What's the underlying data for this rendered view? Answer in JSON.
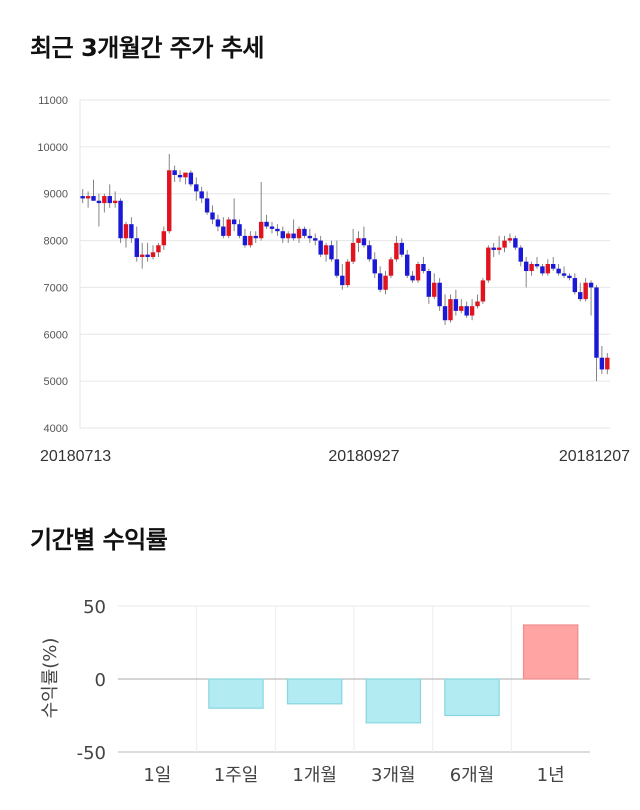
{
  "titles": {
    "price_trend": "최근 3개월간 주가 추세",
    "returns": "기간별 수익률"
  },
  "colors": {
    "up": "#e0141e",
    "down": "#1a1ad6",
    "positive_bar": "#ffa3a3",
    "negative_bar": "#b3ebf2"
  },
  "chart_data": [
    {
      "type": "candlestick",
      "title": "최근 3개월간 주가 추세",
      "ylim": [
        4000,
        11000
      ],
      "y_ticks": [
        4000,
        5000,
        6000,
        7000,
        8000,
        9000,
        10000,
        11000
      ],
      "x_tick_labels": [
        {
          "label": "20180713",
          "index": 0
        },
        {
          "label": "20180927",
          "index": 52
        },
        {
          "label": "20181207",
          "index": 100
        }
      ],
      "grid": true,
      "candles": [
        [
          8950,
          9100,
          8800,
          8900
        ],
        [
          8900,
          9050,
          8700,
          8950
        ],
        [
          8950,
          9300,
          8850,
          8850
        ],
        [
          8850,
          9000,
          8300,
          8800
        ],
        [
          8800,
          9000,
          8600,
          8950
        ],
        [
          8950,
          9200,
          8700,
          8800
        ],
        [
          8800,
          9050,
          8700,
          8850
        ],
        [
          8850,
          8900,
          7950,
          8050
        ],
        [
          8050,
          8400,
          7850,
          8350
        ],
        [
          8350,
          8500,
          7950,
          8050
        ],
        [
          8050,
          8300,
          7550,
          7650
        ],
        [
          7650,
          7950,
          7400,
          7700
        ],
        [
          7700,
          7950,
          7550,
          7650
        ],
        [
          7650,
          7900,
          7600,
          7750
        ],
        [
          7750,
          7950,
          7650,
          7900
        ],
        [
          7900,
          8300,
          7800,
          8200
        ],
        [
          8200,
          9850,
          8150,
          9500
        ],
        [
          9500,
          9600,
          9250,
          9400
        ],
        [
          9400,
          9500,
          9250,
          9350
        ],
        [
          9350,
          9450,
          9200,
          9450
        ],
        [
          9450,
          9500,
          9150,
          9200
        ],
        [
          9200,
          9350,
          8850,
          9050
        ],
        [
          9050,
          9150,
          8800,
          8900
        ],
        [
          8900,
          9050,
          8550,
          8600
        ],
        [
          8600,
          8750,
          8350,
          8450
        ],
        [
          8450,
          8550,
          8200,
          8300
        ],
        [
          8300,
          8500,
          8050,
          8100
        ],
        [
          8100,
          8500,
          8050,
          8450
        ],
        [
          8450,
          8900,
          8200,
          8350
        ],
        [
          8350,
          8450,
          8050,
          8100
        ],
        [
          8100,
          8250,
          7850,
          7900
        ],
        [
          7900,
          8200,
          7850,
          8100
        ],
        [
          8100,
          8200,
          7950,
          8050
        ],
        [
          8050,
          9250,
          8000,
          8400
        ],
        [
          8400,
          8550,
          8250,
          8300
        ],
        [
          8300,
          8400,
          8150,
          8250
        ],
        [
          8250,
          8350,
          8100,
          8200
        ],
        [
          8200,
          8300,
          7950,
          8050
        ],
        [
          8050,
          8200,
          7950,
          8150
        ],
        [
          8150,
          8450,
          8000,
          8050
        ],
        [
          8050,
          8300,
          7950,
          8250
        ],
        [
          8250,
          8300,
          8050,
          8100
        ],
        [
          8100,
          8250,
          7950,
          8050
        ],
        [
          8050,
          8150,
          7900,
          8000
        ],
        [
          8000,
          8100,
          7650,
          7700
        ],
        [
          7700,
          7950,
          7550,
          7900
        ],
        [
          7900,
          8000,
          7550,
          7600
        ],
        [
          7600,
          8000,
          7200,
          7250
        ],
        [
          7250,
          7500,
          6950,
          7050
        ],
        [
          7050,
          7600,
          7000,
          7550
        ],
        [
          7550,
          8250,
          7500,
          7950
        ],
        [
          7950,
          8200,
          7750,
          8050
        ],
        [
          8050,
          8300,
          7850,
          7900
        ],
        [
          7900,
          8000,
          7550,
          7600
        ],
        [
          7600,
          7750,
          7200,
          7300
        ],
        [
          7300,
          7450,
          6900,
          6950
        ],
        [
          6950,
          7350,
          6850,
          7250
        ],
        [
          7250,
          7650,
          7200,
          7600
        ],
        [
          7600,
          8100,
          7550,
          7950
        ],
        [
          7950,
          8050,
          7650,
          7700
        ],
        [
          7700,
          7800,
          7200,
          7250
        ],
        [
          7250,
          7350,
          7100,
          7150
        ],
        [
          7150,
          7550,
          7100,
          7500
        ],
        [
          7500,
          7650,
          7300,
          7350
        ],
        [
          7350,
          7400,
          6650,
          6800
        ],
        [
          6800,
          7300,
          6750,
          7100
        ],
        [
          7100,
          7200,
          6500,
          6600
        ],
        [
          6600,
          6850,
          6200,
          6300
        ],
        [
          6300,
          6850,
          6250,
          6750
        ],
        [
          6750,
          6950,
          6400,
          6500
        ],
        [
          6500,
          6750,
          6450,
          6600
        ],
        [
          6600,
          6700,
          6350,
          6400
        ],
        [
          6400,
          6750,
          6300,
          6600
        ],
        [
          6600,
          6850,
          6550,
          6700
        ],
        [
          6700,
          7200,
          6650,
          7150
        ],
        [
          7150,
          7900,
          7100,
          7850
        ],
        [
          7850,
          7950,
          7650,
          7800
        ],
        [
          7800,
          8100,
          7700,
          7850
        ],
        [
          7850,
          8100,
          7750,
          8000
        ],
        [
          8000,
          8150,
          7950,
          8050
        ],
        [
          8050,
          8100,
          7800,
          7850
        ],
        [
          7850,
          7900,
          7450,
          7550
        ],
        [
          7550,
          7650,
          7000,
          7350
        ],
        [
          7350,
          7550,
          7250,
          7500
        ],
        [
          7500,
          7650,
          7400,
          7450
        ],
        [
          7450,
          7500,
          7250,
          7300
        ],
        [
          7300,
          7600,
          7250,
          7500
        ],
        [
          7500,
          7650,
          7350,
          7400
        ],
        [
          7400,
          7500,
          7250,
          7300
        ],
        [
          7300,
          7450,
          7200,
          7250
        ],
        [
          7250,
          7300,
          7150,
          7200
        ],
        [
          7200,
          7300,
          6850,
          6900
        ],
        [
          6900,
          7100,
          6700,
          6750
        ],
        [
          6750,
          7200,
          6700,
          7100
        ],
        [
          7100,
          7150,
          6400,
          7000
        ],
        [
          7000,
          7050,
          5000,
          5500
        ],
        [
          5500,
          5750,
          5150,
          5250
        ],
        [
          5250,
          5600,
          5150,
          5500
        ]
      ]
    },
    {
      "type": "bar",
      "title": "기간별 수익률",
      "ylabel": "수익률(%)",
      "ylim": [
        -50,
        50
      ],
      "y_ticks": [
        50,
        0,
        -50
      ],
      "categories": [
        "1일",
        "1주일",
        "1개월",
        "3개월",
        "6개월",
        "1년"
      ],
      "values": [
        0,
        -20,
        -17,
        -30,
        -25,
        37
      ],
      "grid": true
    }
  ]
}
